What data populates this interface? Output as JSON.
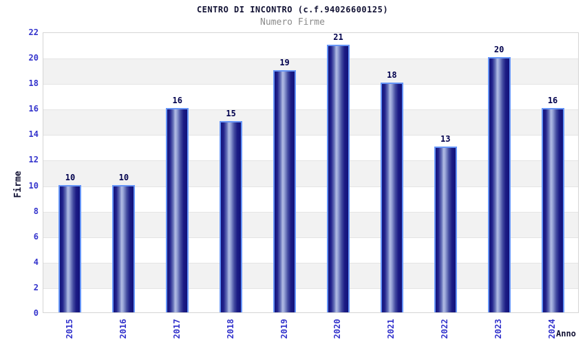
{
  "chart_data": {
    "type": "bar",
    "title": "CENTRO DI INCONTRO (c.f.94026600125)",
    "subtitle": "Numero Firme",
    "xlabel": "Anno",
    "ylabel": "Firme",
    "categories": [
      "2015",
      "2016",
      "2017",
      "2018",
      "2019",
      "2020",
      "2021",
      "2022",
      "2023",
      "2024"
    ],
    "values": [
      10,
      10,
      16,
      15,
      19,
      21,
      18,
      13,
      20,
      16
    ],
    "ylim": [
      0,
      22
    ],
    "ytick_step": 2,
    "yticks": [
      "0",
      "2",
      "4",
      "6",
      "8",
      "10",
      "12",
      "14",
      "16",
      "18",
      "20",
      "22"
    ],
    "grid": "alternating horizontal bands every 2 units, gray bands at 2-4, 6-8, 10-12, 14-16, 18-20",
    "legend_position": "none",
    "colors": {
      "bar_dark": "#12127a",
      "bar_light": "#b2bce4",
      "bar_border": "#6695f7",
      "tick_label": "#3333cc",
      "value_label": "#00004d",
      "title": "#111133",
      "subtitle": "#8a8a8a",
      "band": "#f2f2f2",
      "grid_line": "#e4e4e4",
      "plot_border": "#d4d4d4",
      "background": "#ffffff"
    }
  }
}
